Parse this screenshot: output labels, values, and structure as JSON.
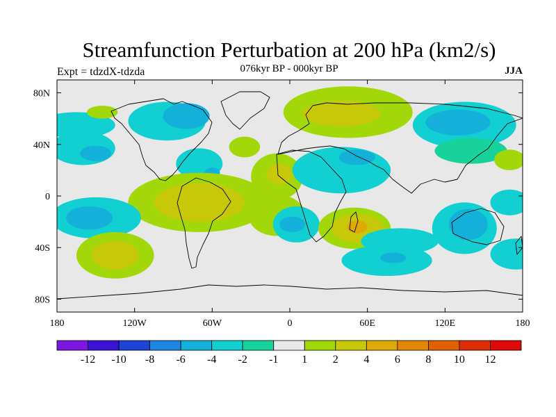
{
  "chart_data": {
    "type": "heatmap",
    "title": "Streamfunction Perturbation at 200 hPa (km2/s)",
    "subtitle": "076kyr BP - 000kyr BP",
    "left_annotation": "Expt = tdzdX-tdzda",
    "right_annotation": "JJA",
    "projection": "cylindrical equidistant, world map",
    "xlim": [
      -180,
      180
    ],
    "ylim": [
      -90,
      90
    ],
    "x_ticks": [
      {
        "value": -180,
        "label": "180"
      },
      {
        "value": -120,
        "label": "120W"
      },
      {
        "value": -60,
        "label": "60W"
      },
      {
        "value": 0,
        "label": "0"
      },
      {
        "value": 60,
        "label": "60E"
      },
      {
        "value": 120,
        "label": "120E"
      },
      {
        "value": 180,
        "label": "180"
      }
    ],
    "y_ticks": [
      {
        "value": 80,
        "label": "80N"
      },
      {
        "value": 40,
        "label": "40N"
      },
      {
        "value": 0,
        "label": "0"
      },
      {
        "value": -40,
        "label": "40S"
      },
      {
        "value": -80,
        "label": "80S"
      }
    ],
    "colorbar": {
      "colors": [
        "#7b17e0",
        "#3a14d6",
        "#1c45d6",
        "#1b86e0",
        "#13b0d9",
        "#12cfd1",
        "#17d39b",
        "#e8e8e8",
        "#a2d80a",
        "#c8c80a",
        "#dfaa06",
        "#e28606",
        "#e06105",
        "#e02f06",
        "#e00a0a"
      ],
      "labels": [
        "-12",
        "-10",
        "-8",
        "-6",
        "-4",
        "-2",
        "-1",
        "1",
        "2",
        "4",
        "6",
        "8",
        "10",
        "12"
      ]
    },
    "features": [
      {
        "lon": -95,
        "lat": 58,
        "rx": 30,
        "ry": 15,
        "value": -2
      },
      {
        "lon": -80,
        "lat": 62,
        "rx": 18,
        "ry": 10,
        "value": -4
      },
      {
        "lon": -165,
        "lat": 55,
        "rx": 30,
        "ry": 10,
        "value": -2
      },
      {
        "lon": -145,
        "lat": 65,
        "rx": 12,
        "ry": 5,
        "value": 2
      },
      {
        "lon": -160,
        "lat": 37,
        "rx": 25,
        "ry": 13,
        "value": -2
      },
      {
        "lon": -150,
        "lat": 33,
        "rx": 12,
        "ry": 6,
        "value": -4
      },
      {
        "lon": -70,
        "lat": 25,
        "rx": 18,
        "ry": 12,
        "value": -2
      },
      {
        "lon": -60,
        "lat": 18,
        "rx": 6,
        "ry": 4,
        "value": -4
      },
      {
        "lon": -35,
        "lat": 38,
        "rx": 12,
        "ry": 8,
        "value": 2
      },
      {
        "lon": -10,
        "lat": 15,
        "rx": 20,
        "ry": 18,
        "value": 2
      },
      {
        "lon": -8,
        "lat": 17,
        "rx": 10,
        "ry": 8,
        "value": 4
      },
      {
        "lon": 45,
        "lat": 65,
        "rx": 50,
        "ry": 20,
        "value": 2
      },
      {
        "lon": 40,
        "lat": 64,
        "rx": 30,
        "ry": 10,
        "value": 4
      },
      {
        "lon": 40,
        "lat": 20,
        "rx": 38,
        "ry": 18,
        "value": -2
      },
      {
        "lon": 52,
        "lat": 30,
        "rx": 14,
        "ry": 6,
        "value": -4
      },
      {
        "lon": 135,
        "lat": 55,
        "rx": 40,
        "ry": 18,
        "value": -2
      },
      {
        "lon": 130,
        "lat": 57,
        "rx": 25,
        "ry": 10,
        "value": -4
      },
      {
        "lon": 140,
        "lat": 35,
        "rx": 28,
        "ry": 10,
        "value": -1
      },
      {
        "lon": 170,
        "lat": 28,
        "rx": 12,
        "ry": 8,
        "value": 2
      },
      {
        "lon": -70,
        "lat": -5,
        "rx": 55,
        "ry": 23,
        "value": 2
      },
      {
        "lon": -70,
        "lat": -5,
        "rx": 35,
        "ry": 15,
        "value": 4
      },
      {
        "lon": -10,
        "lat": -15,
        "rx": 22,
        "ry": 16,
        "value": 2
      },
      {
        "lon": -150,
        "lat": -17,
        "rx": 35,
        "ry": 16,
        "value": -2
      },
      {
        "lon": -155,
        "lat": -17,
        "rx": 18,
        "ry": 9,
        "value": -4
      },
      {
        "lon": -135,
        "lat": -46,
        "rx": 30,
        "ry": 18,
        "value": 2
      },
      {
        "lon": -135,
        "lat": -46,
        "rx": 18,
        "ry": 11,
        "value": 4
      },
      {
        "lon": 5,
        "lat": -22,
        "rx": 18,
        "ry": 14,
        "value": -2
      },
      {
        "lon": 2,
        "lat": -22,
        "rx": 10,
        "ry": 6,
        "value": -4
      },
      {
        "lon": 50,
        "lat": -25,
        "rx": 28,
        "ry": 16,
        "value": 2
      },
      {
        "lon": 52,
        "lat": -25,
        "rx": 20,
        "ry": 11,
        "value": 4
      },
      {
        "lon": 52,
        "lat": -24,
        "rx": 8,
        "ry": 5,
        "value": 6
      },
      {
        "lon": 85,
        "lat": -35,
        "rx": 30,
        "ry": 10,
        "value": -2
      },
      {
        "lon": 75,
        "lat": -50,
        "rx": 35,
        "ry": 12,
        "value": -2
      },
      {
        "lon": 80,
        "lat": -48,
        "rx": 10,
        "ry": 4,
        "value": -4
      },
      {
        "lon": 135,
        "lat": -25,
        "rx": 25,
        "ry": 20,
        "value": -2
      },
      {
        "lon": 138,
        "lat": -22,
        "rx": 15,
        "ry": 12,
        "value": -4
      },
      {
        "lon": 175,
        "lat": -45,
        "rx": 20,
        "ry": 12,
        "value": -2
      },
      {
        "lon": 170,
        "lat": -5,
        "rx": 15,
        "ry": 10,
        "value": -2
      }
    ]
  }
}
